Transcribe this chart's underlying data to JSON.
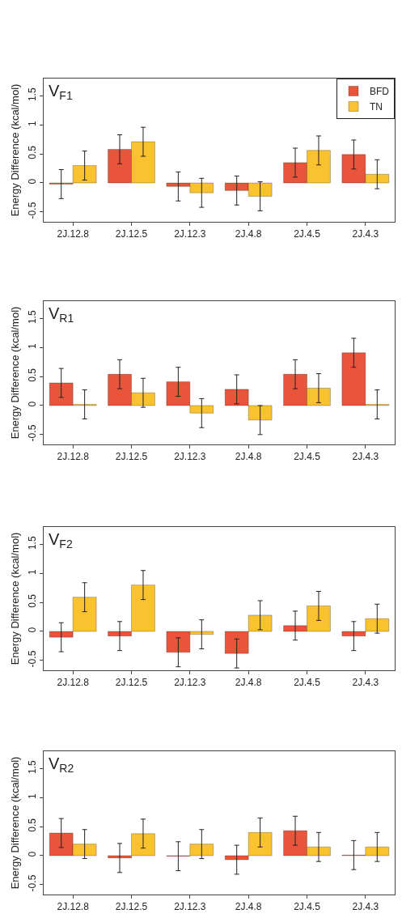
{
  "chart_data": [
    {
      "type": "bar",
      "title": "V$_{F1}$",
      "ylabel": "Energy Difference (kcal/mol)",
      "categories": [
        "2J.12.8",
        "2J.12.5",
        "2J.12.3",
        "2J.4.8",
        "2J.4.5",
        "2J.4.3"
      ],
      "ylim": [
        -0.67,
        1.8
      ],
      "yticks": [
        -0.5,
        0,
        0.5,
        1,
        1.5
      ],
      "grid": false,
      "legend": "top right",
      "series": [
        {
          "name": "BFD",
          "color": "#e8553a",
          "values": [
            -0.02,
            0.58,
            -0.06,
            -0.13,
            0.35,
            0.49
          ],
          "errors": [
            0.25,
            0.25,
            0.25,
            0.25,
            0.25,
            0.25
          ]
        },
        {
          "name": "TN",
          "color": "#f9c22e",
          "values": [
            0.3,
            0.71,
            -0.17,
            -0.23,
            0.56,
            0.15
          ],
          "errors": [
            0.25,
            0.25,
            0.25,
            0.25,
            0.25,
            0.25
          ]
        }
      ]
    },
    {
      "type": "bar",
      "title": "V$_{R1}$",
      "ylabel": "Energy Difference (kcal/mol)",
      "categories": [
        "2J.12.8",
        "2J.12.5",
        "2J.12.3",
        "2J.4.8",
        "2J.4.5",
        "2J.4.3"
      ],
      "ylim": [
        -0.67,
        1.8
      ],
      "yticks": [
        -0.5,
        0,
        0.5,
        1,
        1.5
      ],
      "grid": false,
      "legend": false,
      "series": [
        {
          "color": "#e8553a",
          "values": [
            0.39,
            0.54,
            0.41,
            0.28,
            0.54,
            0.91
          ],
          "errors": [
            0.25,
            0.25,
            0.25,
            0.25,
            0.25,
            0.25
          ]
        },
        {
          "color": "#f9c22e",
          "values": [
            0.02,
            0.22,
            -0.13,
            -0.25,
            0.3,
            0.02
          ],
          "errors": [
            0.25,
            0.25,
            0.25,
            0.25,
            0.25,
            0.25
          ]
        }
      ]
    },
    {
      "type": "bar",
      "title": "V$_{F2}$",
      "ylabel": "Energy Difference (kcal/mol)",
      "categories": [
        "2J.12.8",
        "2J.12.5",
        "2J.12.3",
        "2J.4.8",
        "2J.4.5",
        "2J.4.3"
      ],
      "ylim": [
        -0.67,
        1.8
      ],
      "yticks": [
        -0.5,
        0,
        0.5,
        1,
        1.5
      ],
      "grid": false,
      "legend": false,
      "series": [
        {
          "color": "#e8553a",
          "values": [
            -0.1,
            -0.08,
            -0.36,
            -0.38,
            0.1,
            -0.08
          ],
          "errors": [
            0.25,
            0.25,
            0.25,
            0.25,
            0.25,
            0.25
          ]
        },
        {
          "color": "#f9c22e",
          "values": [
            0.59,
            0.8,
            -0.05,
            0.28,
            0.44,
            0.22
          ],
          "errors": [
            0.25,
            0.25,
            0.25,
            0.25,
            0.25,
            0.25
          ]
        }
      ]
    },
    {
      "type": "bar",
      "title": "V$_{R2}$",
      "ylabel": "Energy Difference (kcal/mol)",
      "categories": [
        "2J.12.8",
        "2J.12.5",
        "2J.12.3",
        "2J.4.8",
        "2J.4.5",
        "2J.4.3"
      ],
      "ylim": [
        -0.67,
        1.8
      ],
      "yticks": [
        -0.5,
        0,
        0.5,
        1,
        1.5
      ],
      "grid": false,
      "legend": false,
      "series": [
        {
          "color": "#e8553a",
          "values": [
            0.39,
            -0.04,
            -0.01,
            -0.07,
            0.43,
            0.01
          ],
          "errors": [
            0.25,
            0.25,
            0.25,
            0.25,
            0.25,
            0.25
          ]
        },
        {
          "color": "#f9c22e",
          "values": [
            0.2,
            0.38,
            0.2,
            0.4,
            0.15,
            0.15
          ],
          "errors": [
            0.25,
            0.25,
            0.25,
            0.25,
            0.25,
            0.25
          ]
        }
      ]
    }
  ]
}
